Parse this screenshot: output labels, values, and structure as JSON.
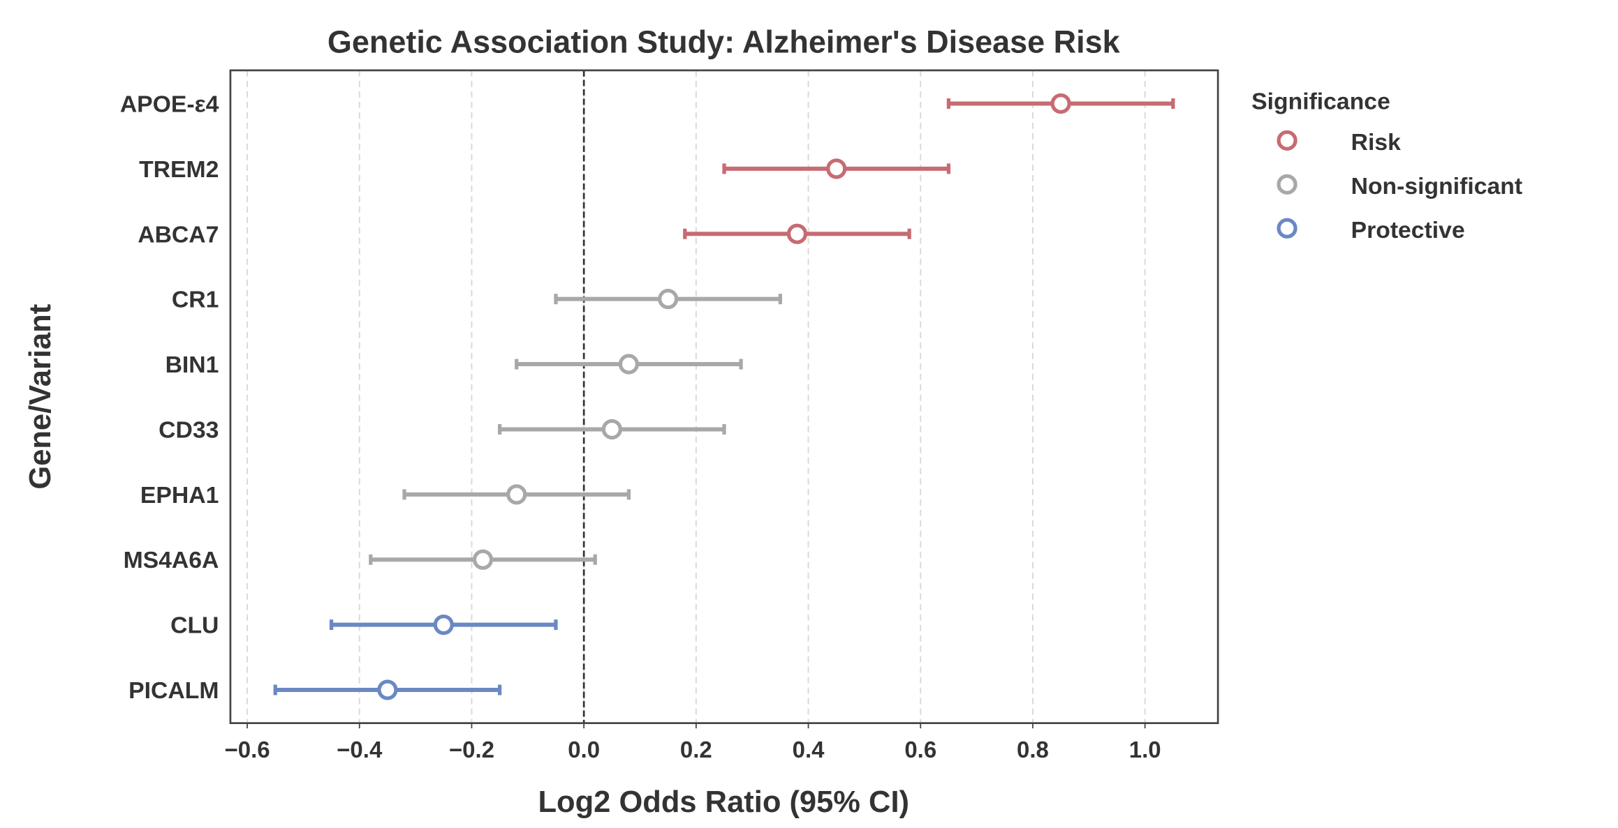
{
  "chart_data": {
    "type": "forest",
    "title": "Genetic Association Study: Alzheimer's Disease Risk",
    "xlabel": "Log2 Odds Ratio (95% CI)",
    "ylabel": "Gene/Variant",
    "xlim": [
      -0.63,
      1.13
    ],
    "xticks": [
      -0.6,
      -0.4,
      -0.2,
      0.0,
      0.2,
      0.4,
      0.6,
      0.8,
      1.0
    ],
    "xtick_labels": [
      "−0.6",
      "−0.4",
      "−0.2",
      "0.0",
      "0.2",
      "0.4",
      "0.6",
      "0.8",
      "1.0"
    ],
    "grid": "x dashed",
    "reference_line": 0.0,
    "legend": {
      "title": "Significance",
      "placement": "outside-top-right",
      "entries": [
        {
          "label": "Risk",
          "color": "#c76b73"
        },
        {
          "label": "Non-significant",
          "color": "#a8a8a8"
        },
        {
          "label": "Protective",
          "color": "#6b88c4"
        }
      ]
    },
    "rows": [
      {
        "label": "APOE-ε4",
        "estimate": 0.85,
        "ci_low": 0.65,
        "ci_high": 1.05,
        "group": "Risk"
      },
      {
        "label": "TREM2",
        "estimate": 0.45,
        "ci_low": 0.25,
        "ci_high": 0.65,
        "group": "Risk"
      },
      {
        "label": "ABCA7",
        "estimate": 0.38,
        "ci_low": 0.18,
        "ci_high": 0.58,
        "group": "Risk"
      },
      {
        "label": "CR1",
        "estimate": 0.15,
        "ci_low": -0.05,
        "ci_high": 0.35,
        "group": "Non-significant"
      },
      {
        "label": "BIN1",
        "estimate": 0.08,
        "ci_low": -0.12,
        "ci_high": 0.28,
        "group": "Non-significant"
      },
      {
        "label": "CD33",
        "estimate": 0.05,
        "ci_low": -0.15,
        "ci_high": 0.25,
        "group": "Non-significant"
      },
      {
        "label": "EPHA1",
        "estimate": -0.12,
        "ci_low": -0.32,
        "ci_high": 0.08,
        "group": "Non-significant"
      },
      {
        "label": "MS4A6A",
        "estimate": -0.18,
        "ci_low": -0.38,
        "ci_high": 0.02,
        "group": "Non-significant"
      },
      {
        "label": "CLU",
        "estimate": -0.25,
        "ci_low": -0.45,
        "ci_high": -0.05,
        "group": "Protective"
      },
      {
        "label": "PICALM",
        "estimate": -0.35,
        "ci_low": -0.55,
        "ci_high": -0.15,
        "group": "Protective"
      }
    ]
  }
}
